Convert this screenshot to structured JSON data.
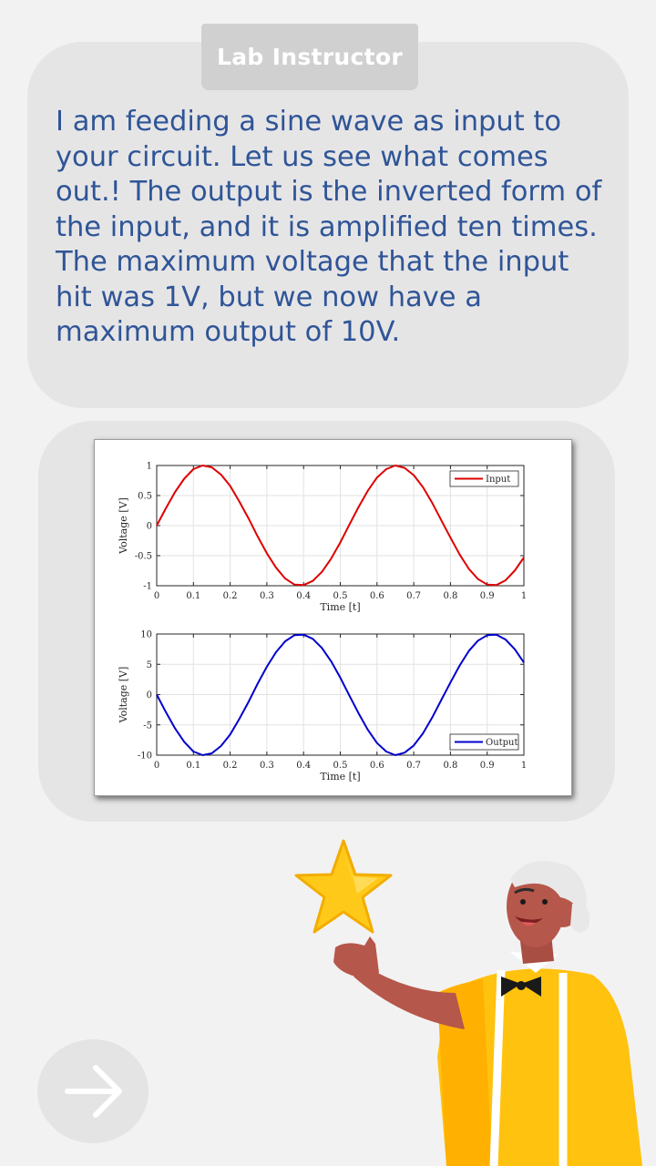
{
  "speaker": {
    "name": "Lab Instructor"
  },
  "message": {
    "text": "I am feeding a sine wave as input to your circuit. Let us see what comes out.! The output is the inverted form of the input, and it is amplified ten times. The maximum voltage that the input hit was 1V, but we now have a maximum output of 10V."
  },
  "navigation": {
    "next_icon": "arrow-right-icon"
  },
  "decor": {
    "star_icon": "star-icon",
    "character": "instructor-illustration"
  },
  "colors": {
    "message_text": "#2f5597",
    "input_series": "#dd0000",
    "output_series": "#0000cc",
    "star": "#ffc91a",
    "shirt": "#ffc20e"
  },
  "chart_data": [
    {
      "type": "line",
      "title": "",
      "xlabel": "Time [t]",
      "ylabel": "Voltage [V]",
      "xlim": [
        0,
        1
      ],
      "ylim": [
        -1,
        1
      ],
      "xticks": [
        "0",
        "0.1",
        "0.2",
        "0.3",
        "0.4",
        "0.5",
        "0.6",
        "0.7",
        "0.8",
        "0.9",
        "1"
      ],
      "yticks": [
        "1",
        "0.5",
        "0",
        "-0.5",
        "-1"
      ],
      "grid": true,
      "legend": "top-right",
      "series": [
        {
          "name": "Input",
          "x": [
            0,
            0.025,
            0.05,
            0.075,
            0.1,
            0.125,
            0.15,
            0.175,
            0.2,
            0.225,
            0.25,
            0.275,
            0.3,
            0.325,
            0.35,
            0.375,
            0.4,
            0.425,
            0.45,
            0.475,
            0.5,
            0.525,
            0.55,
            0.575,
            0.6,
            0.625,
            0.65,
            0.675,
            0.7,
            0.725,
            0.75,
            0.775,
            0.8,
            0.825,
            0.85,
            0.875,
            0.9,
            0.925,
            0.95,
            0.975,
            1
          ],
          "y": [
            0,
            0.29,
            0.56,
            0.78,
            0.94,
            1.0,
            0.97,
            0.85,
            0.66,
            0.4,
            0.12,
            -0.18,
            -0.46,
            -0.7,
            -0.88,
            -0.98,
            -0.99,
            -0.92,
            -0.77,
            -0.55,
            -0.28,
            0.02,
            0.31,
            0.58,
            0.8,
            0.94,
            1.0,
            0.96,
            0.84,
            0.64,
            0.38,
            0.09,
            -0.2,
            -0.48,
            -0.72,
            -0.89,
            -0.98,
            -0.99,
            -0.91,
            -0.75,
            -0.53
          ]
        }
      ]
    },
    {
      "type": "line",
      "title": "",
      "xlabel": "Time [t]",
      "ylabel": "Voltage [V]",
      "xlim": [
        0,
        1
      ],
      "ylim": [
        -10,
        10
      ],
      "xticks": [
        "0",
        "0.1",
        "0.2",
        "0.3",
        "0.4",
        "0.5",
        "0.6",
        "0.7",
        "0.8",
        "0.9",
        "1"
      ],
      "yticks": [
        "10",
        "5",
        "0",
        "-5",
        "-10"
      ],
      "grid": true,
      "legend": "bottom-right",
      "series": [
        {
          "name": "Output",
          "x": [
            0,
            0.025,
            0.05,
            0.075,
            0.1,
            0.125,
            0.15,
            0.175,
            0.2,
            0.225,
            0.25,
            0.275,
            0.3,
            0.325,
            0.35,
            0.375,
            0.4,
            0.425,
            0.45,
            0.475,
            0.5,
            0.525,
            0.55,
            0.575,
            0.6,
            0.625,
            0.65,
            0.675,
            0.7,
            0.725,
            0.75,
            0.775,
            0.8,
            0.825,
            0.85,
            0.875,
            0.9,
            0.925,
            0.95,
            0.975,
            1
          ],
          "y": [
            0,
            -2.9,
            -5.6,
            -7.8,
            -9.4,
            -10.0,
            -9.7,
            -8.5,
            -6.6,
            -4.0,
            -1.2,
            1.8,
            4.6,
            7.0,
            8.8,
            9.8,
            9.9,
            9.2,
            7.7,
            5.5,
            2.8,
            -0.2,
            -3.1,
            -5.8,
            -8.0,
            -9.4,
            -10.0,
            -9.6,
            -8.4,
            -6.4,
            -3.8,
            -0.9,
            2.0,
            4.8,
            7.2,
            8.9,
            9.8,
            9.9,
            9.1,
            7.5,
            5.3
          ]
        }
      ]
    }
  ]
}
